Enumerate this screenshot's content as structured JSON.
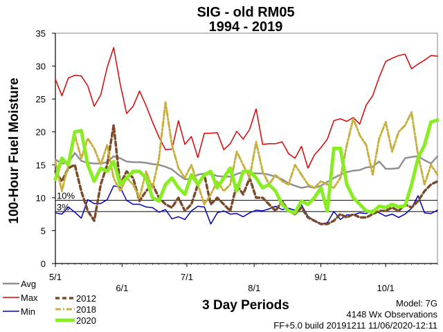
{
  "chart_data": {
    "type": "line",
    "title": "SIG - old RM05",
    "subtitle": "1994 - 2019",
    "xlabel": "3 Day Periods",
    "ylabel": "100-Hour Fuel Moisture",
    "ylim": [
      0,
      35
    ],
    "yticks": [
      "0",
      "5",
      "10",
      "15",
      "20",
      "25",
      "30",
      "35"
    ],
    "xlim": [
      1,
      60
    ],
    "xticks": [
      {
        "period": 1,
        "label": "5/1"
      },
      {
        "period": 11.3,
        "label": "6/1"
      },
      {
        "period": 21.3,
        "label": "7/1"
      },
      {
        "period": 31.7,
        "label": "8/1"
      },
      {
        "period": 42,
        "label": "9/1"
      },
      {
        "period": 52,
        "label": "10/1"
      }
    ],
    "thresholds": [
      {
        "label": "10%",
        "value": 9.6
      },
      {
        "label": "3%",
        "value": 7.9
      }
    ],
    "grid": false,
    "series": [
      {
        "name": "Avg",
        "color": "#909090",
        "style": "solid",
        "values": [
          15.8,
          15.2,
          15.3,
          16.8,
          15.6,
          15.3,
          15.2,
          15.2,
          15.4,
          16.3,
          16.0,
          15.5,
          15.4,
          15.4,
          15.3,
          15.1,
          15.0,
          14.7,
          14.3,
          13.5,
          12.8,
          12.9,
          13.5,
          13.7,
          13.6,
          13.3,
          13.2,
          13.2,
          13.6,
          13.9,
          13.8,
          13.7,
          13.7,
          13.5,
          13.2,
          12.8,
          12.2,
          11.8,
          11.5,
          11.7,
          11.5,
          11.8,
          12.4,
          13.0,
          13.5,
          13.9,
          14.1,
          14.2,
          14.6,
          14.7,
          15.5,
          14.4,
          14.4,
          14.5,
          16.0,
          16.2,
          16.3,
          15.7,
          15.2,
          16.3
        ]
      },
      {
        "name": "Max",
        "color": "#dd0000",
        "style": "solid",
        "values": [
          28.0,
          25.5,
          28.2,
          28.6,
          28.5,
          27.0,
          23.9,
          25.6,
          29.8,
          32.8,
          27.3,
          22.8,
          23.9,
          26.2,
          24.0,
          21.5,
          19.2,
          17.3,
          17.4,
          21.7,
          18.1,
          19.3,
          16.1,
          19.8,
          19.8,
          19.9,
          17.3,
          18.2,
          20.1,
          18.9,
          20.4,
          23.5,
          18.1,
          18.2,
          18.2,
          18.5,
          16.7,
          16.0,
          17.8,
          14.5,
          16.5,
          17.6,
          18.9,
          21.7,
          22.0,
          21.6,
          22.2,
          21.2,
          24.1,
          25.5,
          28.3,
          30.7,
          31.2,
          31.6,
          31.8,
          29.6,
          30.3,
          30.9,
          31.6,
          31.5
        ]
      },
      {
        "name": "Min",
        "color": "#0000bb",
        "style": "solid",
        "values": [
          7.7,
          7.5,
          8.6,
          7.8,
          6.9,
          9.7,
          9.1,
          9.1,
          9.7,
          11.8,
          11.6,
          9.6,
          9.0,
          9.0,
          8.6,
          8.5,
          7.8,
          8.2,
          6.8,
          7.1,
          6.7,
          8.0,
          8.7,
          8.6,
          6.0,
          7.7,
          8.0,
          7.5,
          7.6,
          7.1,
          7.7,
          8.1,
          8.0,
          8.3,
          8.7,
          8.2,
          8.4,
          8.1,
          8.9,
          7.2,
          6.5,
          6.0,
          6.2,
          7.9,
          6.7,
          7.4,
          7.4,
          7.7,
          7.6,
          8.1,
          7.7,
          7.2,
          7.5,
          7.0,
          7.5,
          8.4,
          10.3,
          7.7,
          7.6,
          8.1
        ]
      },
      {
        "name": "2012",
        "color": "#7a4a2a",
        "style": "dash",
        "values": [
          14.0,
          12.5,
          14.5,
          15.0,
          11.0,
          8.0,
          6.5,
          12.0,
          15.0,
          21.0,
          12.0,
          14.0,
          13.0,
          9.5,
          11.0,
          12.0,
          10.0,
          9.0,
          8.5,
          10.0,
          8.0,
          9.0,
          12.0,
          13.5,
          9.0,
          10.0,
          9.0,
          8.0,
          12.0,
          10.5,
          13.0,
          10.0,
          10.0,
          9.0,
          8.0,
          9.5,
          8.0,
          7.5,
          8.5,
          7.0,
          6.5,
          6.0,
          6.0,
          6.5,
          7.5,
          7.0,
          7.5,
          7.0,
          7.0,
          7.5,
          8.0,
          8.0,
          8.5,
          8.0,
          9.0,
          8.5,
          9.5,
          11.0,
          12.0,
          12.5
        ]
      },
      {
        "name": "2018",
        "color": "#c8b040",
        "style": "dashdot",
        "values": [
          15.5,
          11.0,
          15.0,
          19.5,
          16.0,
          19.0,
          17.5,
          15.0,
          18.0,
          13.0,
          11.0,
          13.0,
          12.0,
          10.0,
          14.0,
          11.5,
          16.0,
          24.5,
          18.0,
          14.5,
          13.0,
          15.0,
          12.0,
          9.0,
          10.5,
          12.5,
          11.0,
          12.0,
          17.0,
          15.0,
          13.0,
          18.5,
          14.0,
          12.0,
          13.5,
          12.5,
          12.0,
          15.0,
          13.5,
          12.0,
          11.5,
          12.5,
          12.0,
          11.5,
          13.0,
          18.0,
          22.0,
          19.5,
          18.0,
          13.5,
          19.0,
          21.5,
          17.0,
          20.0,
          21.0,
          23.0,
          16.5,
          12.0,
          15.0,
          13.5
        ]
      },
      {
        "name": "2020",
        "color": "#88ee22",
        "style": "solid",
        "values": [
          12.8,
          16.0,
          15.0,
          20.0,
          20.2,
          15.0,
          12.5,
          14.5,
          14.0,
          15.5,
          12.0,
          13.0,
          14.0,
          14.0,
          13.0,
          10.0,
          9.5,
          12.0,
          13.0,
          11.5,
          10.5,
          13.5,
          12.0,
          13.5,
          14.0,
          11.5,
          13.0,
          14.5,
          11.0,
          14.0,
          14.0,
          13.0,
          11.5,
          12.0,
          11.0,
          9.0,
          8.0,
          7.7,
          9.5,
          9.0,
          10.0,
          11.5,
          8.0,
          17.5,
          17.5,
          12.0,
          10.0,
          9.0,
          8.0,
          7.8,
          8.7,
          8.5,
          9.0,
          8.6,
          8.8,
          12.0,
          16.0,
          18.0,
          21.5,
          21.8
        ]
      }
    ]
  },
  "legend": {
    "avg": "Avg",
    "max": "Max",
    "min": "Min",
    "y2012": "2012",
    "y2018": "2018",
    "y2020": "2020"
  },
  "info": {
    "model": "Model: 7G",
    "observations": "4148 Wx Observations",
    "build": "FF+5.0 build 20191211 11/06/2020-12:11"
  }
}
